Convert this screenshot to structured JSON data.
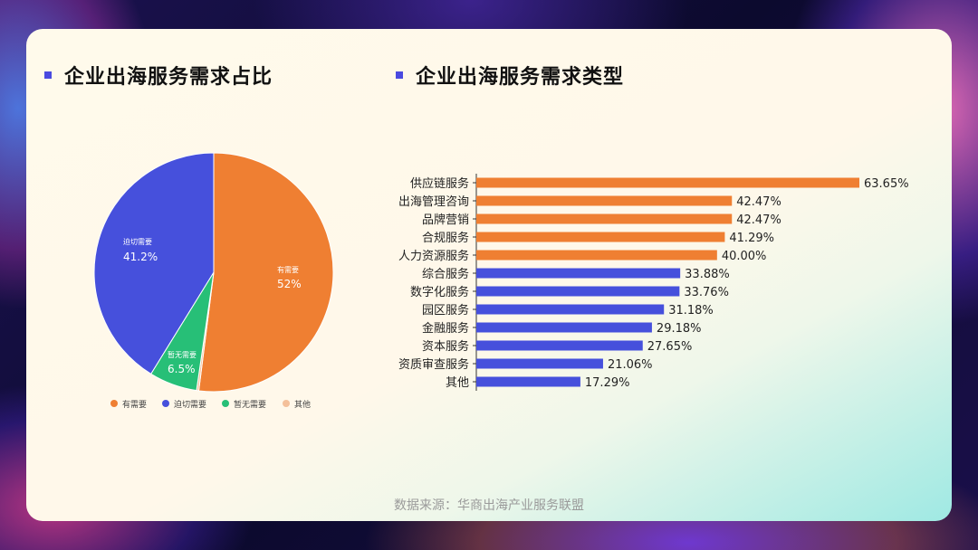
{
  "source_note": "数据来源：华商出海产业服务联盟",
  "chart_data": [
    {
      "type": "pie",
      "title": "企业出海服务需求占比",
      "slices": [
        {
          "label": "有需要",
          "value": 52,
          "display": "52%",
          "color": "#ef7f32"
        },
        {
          "label": "其他",
          "value": 0.3,
          "display": "",
          "color": "#f4c09a"
        },
        {
          "label": "暂无需要",
          "value": 6.5,
          "display": "6.5%",
          "color": "#27bf77"
        },
        {
          "label": "迫切需要",
          "value": 41.2,
          "display": "41.2%",
          "color": "#4650dc"
        }
      ],
      "legend": [
        "有需要",
        "迫切需要",
        "暂无需要",
        "其他"
      ],
      "legend_placement": "bottom"
    },
    {
      "type": "bar",
      "orientation": "horizontal",
      "title": "企业出海服务需求类型",
      "categories": [
        "供应链服务",
        "出海管理咨询",
        "品牌营销",
        "合规服务",
        "人力资源服务",
        "综合服务",
        "数字化服务",
        "园区服务",
        "金融服务",
        "资本服务",
        "资质审查服务",
        "其他"
      ],
      "values": [
        63.65,
        42.47,
        42.47,
        41.29,
        40.0,
        33.88,
        33.76,
        31.18,
        29.18,
        27.65,
        21.06,
        17.29
      ],
      "labels": [
        "63.65%",
        "42.47%",
        "42.47%",
        "41.29%",
        "40.00%",
        "33.88%",
        "33.76%",
        "31.18%",
        "29.18%",
        "27.65%",
        "21.06%",
        "17.29%"
      ],
      "colors": [
        "#ef7f32",
        "#ef7f32",
        "#ef7f32",
        "#ef7f32",
        "#ef7f32",
        "#4650dc",
        "#4650dc",
        "#4650dc",
        "#4650dc",
        "#4650dc",
        "#4650dc",
        "#4650dc"
      ],
      "xlim": [
        0,
        63.65
      ]
    }
  ]
}
